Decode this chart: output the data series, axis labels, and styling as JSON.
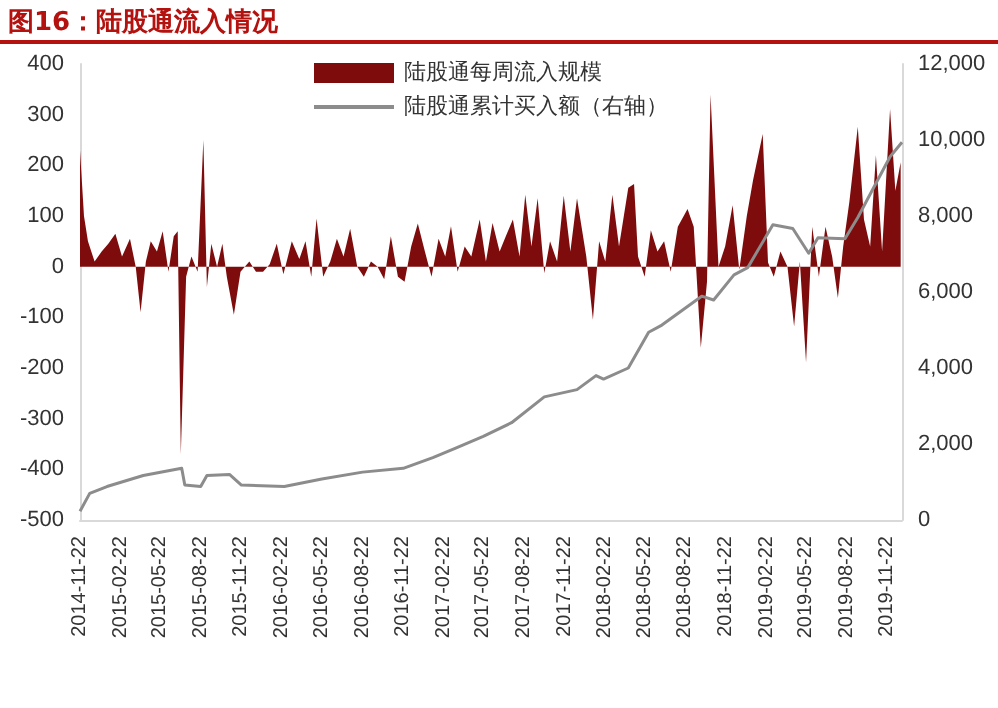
{
  "chart_data": {
    "type": "area",
    "title": "图16：陆股通流入情况",
    "xlim": [
      "2014-11-22",
      "2019-12-25"
    ],
    "xticks": [
      "2014-11-22",
      "2015-02-22",
      "2015-05-22",
      "2015-08-22",
      "2015-11-22",
      "2016-02-22",
      "2016-05-22",
      "2016-08-22",
      "2016-11-22",
      "2017-02-22",
      "2017-05-22",
      "2017-08-22",
      "2017-11-22",
      "2018-02-22",
      "2018-05-22",
      "2018-08-22",
      "2018-11-22",
      "2019-02-22",
      "2019-05-22",
      "2019-08-22",
      "2019-11-22"
    ],
    "ylim": [
      -500,
      400
    ],
    "yticks": [
      -500,
      -400,
      -300,
      -200,
      -100,
      0,
      100,
      200,
      300,
      400
    ],
    "y2lim": [
      0,
      12000
    ],
    "y2ticks": [
      0,
      {
        "value": 2000,
        "label": "2,000"
      },
      {
        "value": 4000,
        "label": "4,000"
      },
      {
        "value": 6000,
        "label": "6,000"
      },
      {
        "value": 8000,
        "label": "8,000"
      },
      {
        "value": 10000,
        "label": "10,000"
      },
      {
        "value": 12000,
        "label": "12,000"
      }
    ],
    "grid": false,
    "legend": "top right",
    "marker": "none",
    "series": [
      {
        "name": "陆股通每周流入规模",
        "color": "#7f0c0c",
        "x": [
          "2014-11-22",
          "2014-12-01",
          "2014-12-10",
          "2014-12-25",
          "2015-01-10",
          "2015-01-25",
          "2015-02-10",
          "2015-02-25",
          "2015-03-15",
          "2015-03-28",
          "2015-04-08",
          "2015-04-20",
          "2015-05-01",
          "2015-05-15",
          "2015-05-28",
          "2015-06-10",
          "2015-06-22",
          "2015-07-01",
          "2015-07-08",
          "2015-07-20",
          "2015-08-01",
          "2015-08-15",
          "2015-08-28",
          "2015-09-05",
          "2015-09-15",
          "2015-09-28",
          "2015-10-10",
          "2015-10-20",
          "2015-11-05",
          "2015-11-20",
          "2015-12-10",
          "2015-12-25",
          "2016-01-10",
          "2016-01-25",
          "2016-02-10",
          "2016-02-25",
          "2016-03-15",
          "2016-04-01",
          "2016-04-15",
          "2016-04-28",
          "2016-05-10",
          "2016-05-25",
          "2016-06-10",
          "2016-06-25",
          "2016-07-10",
          "2016-07-25",
          "2016-08-10",
          "2016-08-25",
          "2016-09-10",
          "2016-09-25",
          "2016-10-10",
          "2016-10-25",
          "2016-11-10",
          "2016-11-25",
          "2016-12-10",
          "2016-12-25",
          "2017-01-10",
          "2017-01-25",
          "2017-02-10",
          "2017-02-25",
          "2017-03-10",
          "2017-03-25",
          "2017-04-10",
          "2017-04-25",
          "2017-05-14",
          "2017-05-28",
          "2017-06-12",
          "2017-06-28",
          "2017-07-12",
          "2017-07-28",
          "2017-08-12",
          "2017-08-25",
          "2017-09-08",
          "2017-09-22",
          "2017-10-07",
          "2017-10-20",
          "2017-11-05",
          "2017-11-20",
          "2017-12-05",
          "2017-12-20",
          "2018-01-10",
          "2018-01-25",
          "2018-02-08",
          "2018-02-22",
          "2018-03-10",
          "2018-03-25",
          "2018-04-15",
          "2018-04-28",
          "2018-05-07",
          "2018-05-22",
          "2018-06-05",
          "2018-06-20",
          "2018-07-05",
          "2018-07-20",
          "2018-08-05",
          "2018-08-27",
          "2018-09-10",
          "2018-09-26",
          "2018-10-10",
          "2018-10-18",
          "2018-11-05",
          "2018-11-20",
          "2018-12-07",
          "2018-12-22",
          "2019-01-08",
          "2019-01-22",
          "2019-02-13",
          "2019-02-25",
          "2019-03-10",
          "2019-03-25",
          "2019-04-10",
          "2019-04-25",
          "2019-05-08",
          "2019-05-22",
          "2019-06-05",
          "2019-06-20",
          "2019-07-05",
          "2019-07-20",
          "2019-08-02",
          "2019-08-14",
          "2019-08-28",
          "2019-09-16",
          "2019-09-30",
          "2019-10-14",
          "2019-10-27",
          "2019-11-10",
          "2019-11-28",
          "2019-12-10",
          "2019-12-22"
        ],
        "values": [
          230,
          100,
          50,
          10,
          30,
          45,
          65,
          20,
          55,
          0,
          -90,
          10,
          50,
          30,
          70,
          -10,
          60,
          70,
          -370,
          -20,
          20,
          -10,
          250,
          -40,
          45,
          0,
          45,
          -20,
          -95,
          -10,
          10,
          -10,
          -10,
          5,
          45,
          -15,
          50,
          15,
          50,
          -20,
          95,
          -20,
          10,
          55,
          20,
          75,
          0,
          -20,
          10,
          0,
          -25,
          60,
          -20,
          -30,
          40,
          85,
          30,
          -20,
          55,
          20,
          80,
          -10,
          40,
          20,
          93,
          10,
          86,
          30,
          60,
          93,
          20,
          142,
          40,
          135,
          -13,
          50,
          10,
          140,
          30,
          135,
          20,
          -105,
          50,
          10,
          142,
          40,
          156,
          163,
          20,
          -20,
          72,
          30,
          50,
          -10,
          79,
          114,
          79,
          -160,
          -30,
          340,
          0,
          40,
          121,
          -6,
          100,
          170,
          262,
          8,
          -20,
          30,
          0,
          -118,
          10,
          -189,
          79,
          -20,
          79,
          20,
          -62,
          40,
          128,
          276,
          93,
          40,
          220,
          30,
          311,
          150,
          206
        ]
      },
      {
        "name": "陆股通累计买入额（右轴）",
        "type": "line",
        "axis": "y2",
        "color": "#8c8c8c",
        "x": [
          "2014-11-22",
          "2014-12-14",
          "2015-01-22",
          "2015-04-14",
          "2015-07-10",
          "2015-07-17",
          "2015-08-22",
          "2015-09-05",
          "2015-10-26",
          "2015-11-22",
          "2016-02-27",
          "2016-05-22",
          "2016-08-22",
          "2016-11-22",
          "2017-01-28",
          "2017-03-22",
          "2017-05-22",
          "2017-07-25",
          "2017-10-07",
          "2017-12-20",
          "2018-02-01",
          "2018-02-18",
          "2018-04-15",
          "2018-05-31",
          "2018-06-30",
          "2018-09-28",
          "2018-10-25",
          "2018-12-10",
          "2019-01-10",
          "2019-03-08",
          "2019-04-22",
          "2019-05-28",
          "2019-06-18",
          "2019-08-18",
          "2019-09-16",
          "2019-11-28",
          "2019-12-25"
        ],
        "values": [
          230,
          700,
          880,
          1170,
          1360,
          920,
          880,
          1170,
          1200,
          920,
          880,
          1080,
          1260,
          1360,
          1640,
          1900,
          2200,
          2560,
          3240,
          3430,
          3800,
          3710,
          4000,
          4940,
          5130,
          5890,
          5790,
          6450,
          6640,
          7770,
          7670,
          7020,
          7430,
          7400,
          7960,
          9560,
          9940
        ]
      }
    ]
  }
}
